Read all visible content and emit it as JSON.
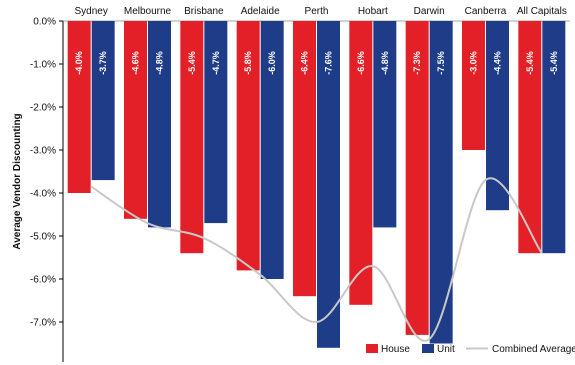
{
  "chart_data": {
    "type": "bar",
    "ylabel": "Average Vendor Discounting",
    "ylim": [
      -8.0,
      0.0
    ],
    "yticks": [
      "0.0%",
      "-1.0%",
      "-2.0%",
      "-3.0%",
      "-4.0%",
      "-5.0%",
      "-6.0%",
      "-7.0%"
    ],
    "categories": [
      "Sydney",
      "Melbourne",
      "Brisbane",
      "Adelaide",
      "Perth",
      "Hobart",
      "Darwin",
      "Canberra",
      "All Capitals"
    ],
    "series": [
      {
        "name": "House",
        "color": "#e32027",
        "values": [
          -4.0,
          -4.6,
          -5.4,
          -5.8,
          -6.4,
          -6.6,
          -7.3,
          -3.0,
          -5.4
        ],
        "labels": [
          "-4.0%",
          "-4.6%",
          "-5.4%",
          "-5.8%",
          "-6.4%",
          "-6.6%",
          "-7.3%",
          "-3.0%",
          "-5.4%"
        ]
      },
      {
        "name": "Unit",
        "color": "#1f3c88",
        "values": [
          -3.7,
          -4.8,
          -4.7,
          -6.0,
          -7.6,
          -4.8,
          -7.5,
          -4.4,
          -5.4
        ],
        "labels": [
          "-3.7%",
          "-4.8%",
          "-4.7%",
          "-6.0%",
          "-7.6%",
          "-4.8%",
          "-7.5%",
          "-4.4%",
          "-5.4%"
        ]
      }
    ],
    "combined": {
      "name": "Combined Average",
      "color": "#c8c8c8",
      "values": [
        -3.85,
        -4.7,
        -5.05,
        -5.9,
        -7.0,
        -5.7,
        -7.4,
        -3.7,
        -5.4
      ]
    },
    "legend_position": "bottom-right",
    "grid": false
  }
}
